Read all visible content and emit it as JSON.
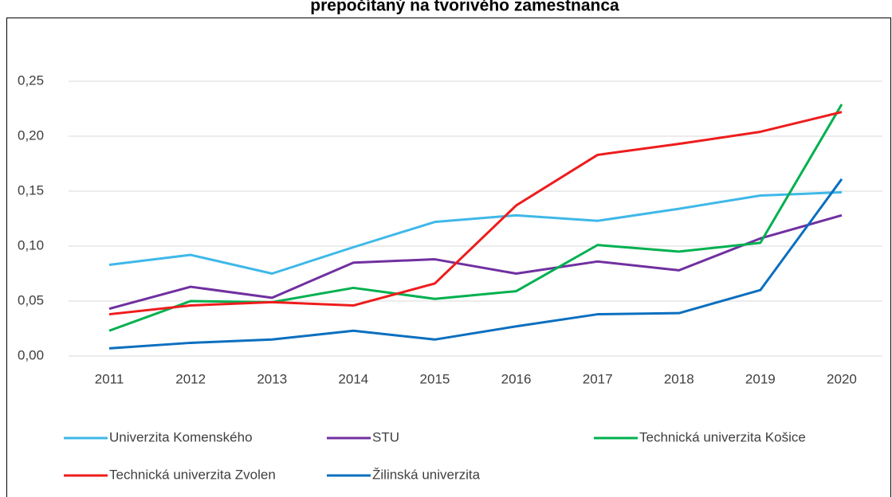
{
  "chart_data": {
    "type": "line",
    "title": "prepočítaný na tvorivého zamestnanca",
    "categories": [
      "2011",
      "2012",
      "2013",
      "2014",
      "2015",
      "2016",
      "2017",
      "2018",
      "2019",
      "2020"
    ],
    "series": [
      {
        "name": "Univerzita Komenského",
        "color": "#3fb8e8",
        "values": [
          0.083,
          0.092,
          0.075,
          0.099,
          0.122,
          0.128,
          0.123,
          0.134,
          0.146,
          0.149
        ]
      },
      {
        "name": "STU",
        "color": "#7030a0",
        "values": [
          0.043,
          0.063,
          0.053,
          0.085,
          0.088,
          0.075,
          0.086,
          0.078,
          0.107,
          0.128
        ]
      },
      {
        "name": "Technická univerzita Košice",
        "color": "#00b050",
        "values": [
          0.023,
          0.05,
          0.049,
          0.062,
          0.052,
          0.059,
          0.101,
          0.095,
          0.103,
          0.229
        ]
      },
      {
        "name": "Technická univerzita Zvolen",
        "color": "#ee1c1c",
        "values": [
          0.038,
          0.046,
          0.049,
          0.046,
          0.066,
          0.137,
          0.183,
          0.193,
          0.204,
          0.222
        ]
      },
      {
        "name": "Žilinská univerzita",
        "color": "#0b6fbf",
        "values": [
          0.007,
          0.012,
          0.015,
          0.023,
          0.015,
          0.027,
          0.038,
          0.039,
          0.06,
          0.161
        ]
      }
    ],
    "ylim": [
      0,
      0.25
    ],
    "yticks": [
      {
        "value": 0,
        "label": "0,00"
      },
      {
        "value": 0.05,
        "label": "0,05"
      },
      {
        "value": 0.1,
        "label": "0,10"
      },
      {
        "value": 0.15,
        "label": "0,15"
      },
      {
        "value": 0.2,
        "label": "0,20"
      },
      {
        "value": 0.25,
        "label": "0,25"
      }
    ],
    "grid": true,
    "legend": "bottom"
  }
}
